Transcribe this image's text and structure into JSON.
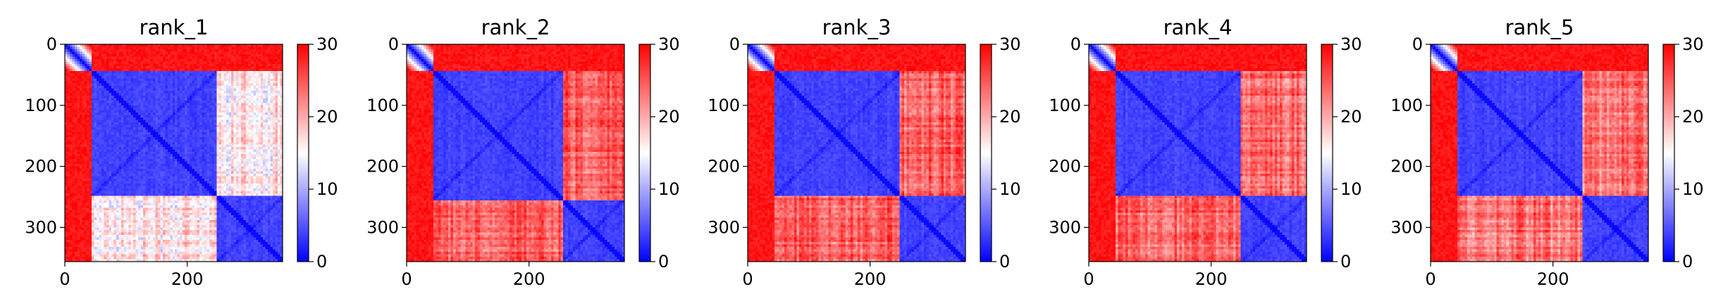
{
  "chart_data": [
    {
      "type": "heatmap",
      "title": "rank_1",
      "pattern": {
        "domain_split": 250,
        "n_tail": 43,
        "offdiag_level": 0.55
      },
      "x_ticks": [
        0,
        200
      ],
      "y_ticks": [
        0,
        100,
        200,
        300
      ],
      "xlim": [
        0,
        356
      ],
      "ylim": [
        356,
        0
      ],
      "colorbar": {
        "ticks": [
          0,
          10,
          20,
          30
        ],
        "min": 0,
        "max": 30
      }
    },
    {
      "type": "heatmap",
      "title": "rank_2",
      "pattern": {
        "domain_split": 255,
        "n_tail": 43,
        "offdiag_level": 0.82
      },
      "x_ticks": [
        0,
        200
      ],
      "y_ticks": [
        0,
        100,
        200,
        300
      ],
      "xlim": [
        0,
        356
      ],
      "ylim": [
        356,
        0
      ],
      "colorbar": {
        "ticks": [
          0,
          10,
          20,
          30
        ],
        "min": 0,
        "max": 30
      }
    },
    {
      "type": "heatmap",
      "title": "rank_3",
      "pattern": {
        "domain_split": 250,
        "n_tail": 43,
        "offdiag_level": 0.82
      },
      "x_ticks": [
        0,
        200
      ],
      "y_ticks": [
        0,
        100,
        200,
        300
      ],
      "xlim": [
        0,
        356
      ],
      "ylim": [
        356,
        0
      ],
      "colorbar": {
        "ticks": [
          0,
          10,
          20,
          30
        ],
        "min": 0,
        "max": 30
      }
    },
    {
      "type": "heatmap",
      "title": "rank_4",
      "pattern": {
        "domain_split": 250,
        "n_tail": 43,
        "offdiag_level": 0.8
      },
      "x_ticks": [
        0,
        200
      ],
      "y_ticks": [
        0,
        100,
        200,
        300
      ],
      "xlim": [
        0,
        356
      ],
      "ylim": [
        356,
        0
      ],
      "colorbar": {
        "ticks": [
          0,
          10,
          20,
          30
        ],
        "min": 0,
        "max": 30
      }
    },
    {
      "type": "heatmap",
      "title": "rank_5",
      "pattern": {
        "domain_split": 250,
        "n_tail": 43,
        "offdiag_level": 0.78
      },
      "x_ticks": [
        0,
        200
      ],
      "y_ticks": [
        0,
        100,
        200,
        300
      ],
      "xlim": [
        0,
        356
      ],
      "ylim": [
        356,
        0
      ],
      "colorbar": {
        "ticks": [
          0,
          10,
          20,
          30
        ],
        "min": 0,
        "max": 30
      }
    }
  ]
}
